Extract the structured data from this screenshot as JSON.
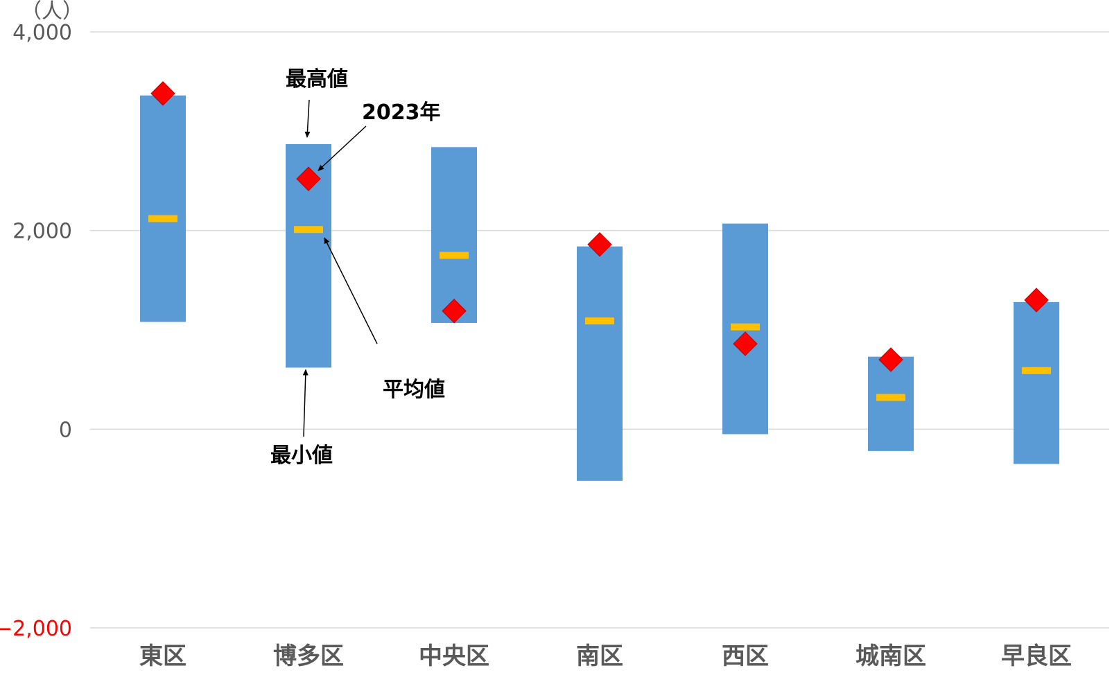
{
  "chart_data": {
    "type": "bar",
    "subtype": "floating-range-with-markers",
    "unit_label": "（人）",
    "categories": [
      "東区",
      "博多区",
      "中央区",
      "南区",
      "西区",
      "城南区",
      "早良区"
    ],
    "series": [
      {
        "name": "最小値",
        "values": [
          1080,
          620,
          1070,
          -520,
          -50,
          -220,
          -350
        ]
      },
      {
        "name": "最高値",
        "values": [
          3360,
          2870,
          2840,
          1840,
          2070,
          730,
          1280
        ]
      },
      {
        "name": "平均値",
        "values": [
          2120,
          2010,
          1750,
          1090,
          1030,
          320,
          590
        ]
      },
      {
        "name": "2023年",
        "values": [
          3380,
          2520,
          1190,
          1860,
          860,
          700,
          1300
        ]
      }
    ],
    "yticks": [
      {
        "value": 4000,
        "label": "4,000"
      },
      {
        "value": 2000,
        "label": "2,000"
      },
      {
        "value": 0,
        "label": "0"
      },
      {
        "value": -2000,
        "label": "−2,000",
        "negative": true
      }
    ],
    "ylim": [
      -2000,
      4000
    ],
    "grid": true,
    "annotations": [
      {
        "text": "最高値"
      },
      {
        "text": "2023年"
      },
      {
        "text": "平均値"
      },
      {
        "text": "最小値"
      }
    ],
    "colors": {
      "range_bar": "#5b9bd5",
      "average": "#ffc000",
      "marker_2023": "#ff0000",
      "negative_tick": "#ff0000",
      "axis_text": "#595959"
    }
  }
}
